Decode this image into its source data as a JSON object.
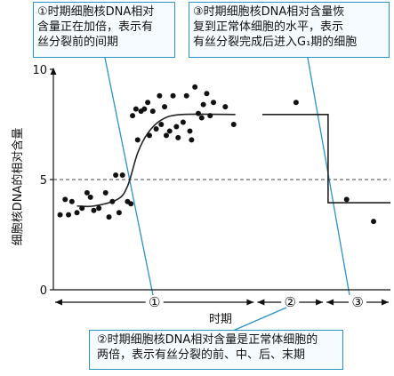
{
  "chart_data": {
    "type": "scatter",
    "xlabel": "时期",
    "ylabel": "细胞核DNA的相对含量",
    "yticks": [
      "0",
      "5",
      "10"
    ],
    "ylim": [
      0,
      10
    ],
    "xlim": [
      0,
      10
    ],
    "reference_line": {
      "y": 5,
      "style": "dashed"
    },
    "points": [
      {
        "x": 0.2,
        "y": 3.4
      },
      {
        "x": 0.35,
        "y": 4.1
      },
      {
        "x": 0.45,
        "y": 3.4
      },
      {
        "x": 0.55,
        "y": 4.0
      },
      {
        "x": 0.7,
        "y": 3.5
      },
      {
        "x": 0.85,
        "y": 3.7
      },
      {
        "x": 1.0,
        "y": 4.4
      },
      {
        "x": 1.1,
        "y": 4.2
      },
      {
        "x": 1.2,
        "y": 3.6
      },
      {
        "x": 1.35,
        "y": 3.7
      },
      {
        "x": 1.55,
        "y": 4.4
      },
      {
        "x": 1.65,
        "y": 3.3
      },
      {
        "x": 1.75,
        "y": 4.0
      },
      {
        "x": 1.85,
        "y": 5.2
      },
      {
        "x": 1.95,
        "y": 3.5
      },
      {
        "x": 2.05,
        "y": 5.2
      },
      {
        "x": 2.2,
        "y": 4.0
      },
      {
        "x": 2.3,
        "y": 3.9
      },
      {
        "x": 2.35,
        "y": 7.9
      },
      {
        "x": 2.45,
        "y": 8.2
      },
      {
        "x": 2.5,
        "y": 6.8
      },
      {
        "x": 2.6,
        "y": 8.1
      },
      {
        "x": 2.7,
        "y": 8.2
      },
      {
        "x": 2.8,
        "y": 8.5
      },
      {
        "x": 2.85,
        "y": 7.0
      },
      {
        "x": 2.95,
        "y": 8.1
      },
      {
        "x": 3.05,
        "y": 7.3
      },
      {
        "x": 3.15,
        "y": 8.8
      },
      {
        "x": 3.2,
        "y": 7.5
      },
      {
        "x": 3.3,
        "y": 8.3
      },
      {
        "x": 3.35,
        "y": 7.0
      },
      {
        "x": 3.45,
        "y": 7.2
      },
      {
        "x": 3.55,
        "y": 8.8
      },
      {
        "x": 3.65,
        "y": 7.4
      },
      {
        "x": 3.7,
        "y": 6.9
      },
      {
        "x": 3.85,
        "y": 7.6
      },
      {
        "x": 3.95,
        "y": 8.8
      },
      {
        "x": 4.05,
        "y": 7.2
      },
      {
        "x": 4.1,
        "y": 6.8
      },
      {
        "x": 4.2,
        "y": 9.2
      },
      {
        "x": 4.3,
        "y": 8.0
      },
      {
        "x": 4.4,
        "y": 7.8
      },
      {
        "x": 4.45,
        "y": 8.4
      },
      {
        "x": 4.55,
        "y": 8.9
      },
      {
        "x": 4.65,
        "y": 7.9
      },
      {
        "x": 4.75,
        "y": 8.5
      },
      {
        "x": 5.1,
        "y": 8.3
      },
      {
        "x": 5.35,
        "y": 7.5
      },
      {
        "x": 7.2,
        "y": 8.5
      },
      {
        "x": 8.7,
        "y": 4.1
      },
      {
        "x": 9.5,
        "y": 3.1
      }
    ],
    "curve": [
      {
        "x": 0.7,
        "y": 3.8
      },
      {
        "x": 1.2,
        "y": 3.8
      },
      {
        "x": 1.9,
        "y": 4.1
      },
      {
        "x": 2.2,
        "y": 4.7
      },
      {
        "x": 2.5,
        "y": 6.2
      },
      {
        "x": 2.8,
        "y": 7.1
      },
      {
        "x": 3.2,
        "y": 7.7
      },
      {
        "x": 3.8,
        "y": 7.95
      },
      {
        "x": 5.4,
        "y": 7.95
      }
    ],
    "step": [
      {
        "x": 6.2,
        "y": 7.95
      },
      {
        "x": 8.15,
        "y": 7.95
      },
      {
        "x": 8.15,
        "y": 3.95
      },
      {
        "x": 10.0,
        "y": 3.95
      }
    ],
    "periods": [
      {
        "label": "①",
        "start": 0,
        "end": 6.0
      },
      {
        "label": "②",
        "start": 6.0,
        "end": 8.05
      },
      {
        "label": "③",
        "start": 8.05,
        "end": 10.0
      }
    ]
  },
  "callouts": {
    "c1": "①时期细胞核DNA相对\n含量正在加倍，表示有\n丝分裂前的间期",
    "c2": "②时期细胞核DNA相对含量是正常体细胞的\n两倍，表示有丝分裂的前、中、后、末期",
    "c3": "③时期细胞核DNA相对含量恢\n复到正常体细胞的水平，表示\n有丝分裂完成后进入G₁期的细胞"
  },
  "colors": {
    "accent": "#2a93c8",
    "callout_bg": "#f5fbff",
    "ink": "#111111"
  }
}
